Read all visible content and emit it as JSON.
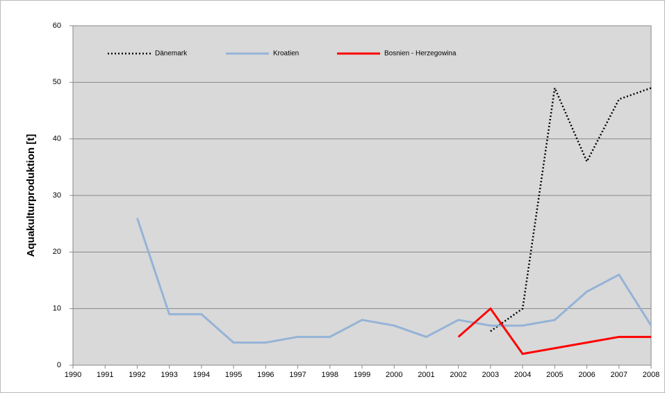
{
  "chart_data": {
    "type": "line",
    "ylabel": "Aquakulturproduktion [t]",
    "categories": [
      "1990",
      "1991",
      "1992",
      "1993",
      "1994",
      "1995",
      "1996",
      "1997",
      "1998",
      "1999",
      "2000",
      "2001",
      "2002",
      "2003",
      "2004",
      "2005",
      "2006",
      "2007",
      "2008"
    ],
    "series": [
      {
        "name": "Dänemark",
        "color": "#000000",
        "style": "dotted",
        "values": [
          null,
          null,
          null,
          null,
          null,
          null,
          null,
          null,
          null,
          null,
          null,
          null,
          null,
          6,
          10,
          49,
          36,
          47,
          49
        ]
      },
      {
        "name": "Kroatien",
        "color": "#95b3d7",
        "style": "solid",
        "values": [
          null,
          null,
          26,
          9,
          9,
          4,
          4,
          5,
          5,
          8,
          7,
          5,
          8,
          7,
          7,
          8,
          13,
          16,
          7
        ]
      },
      {
        "name": "Bosnien - Herzegowina",
        "color": "#ff0000",
        "style": "solid",
        "values": [
          null,
          null,
          null,
          null,
          null,
          null,
          null,
          null,
          null,
          null,
          null,
          null,
          5,
          10,
          2,
          3,
          4,
          5,
          5
        ]
      }
    ],
    "ylim": [
      0,
      60
    ],
    "yticks": [
      0,
      10,
      20,
      30,
      40,
      50,
      60
    ],
    "grid": true,
    "legend": "top"
  }
}
